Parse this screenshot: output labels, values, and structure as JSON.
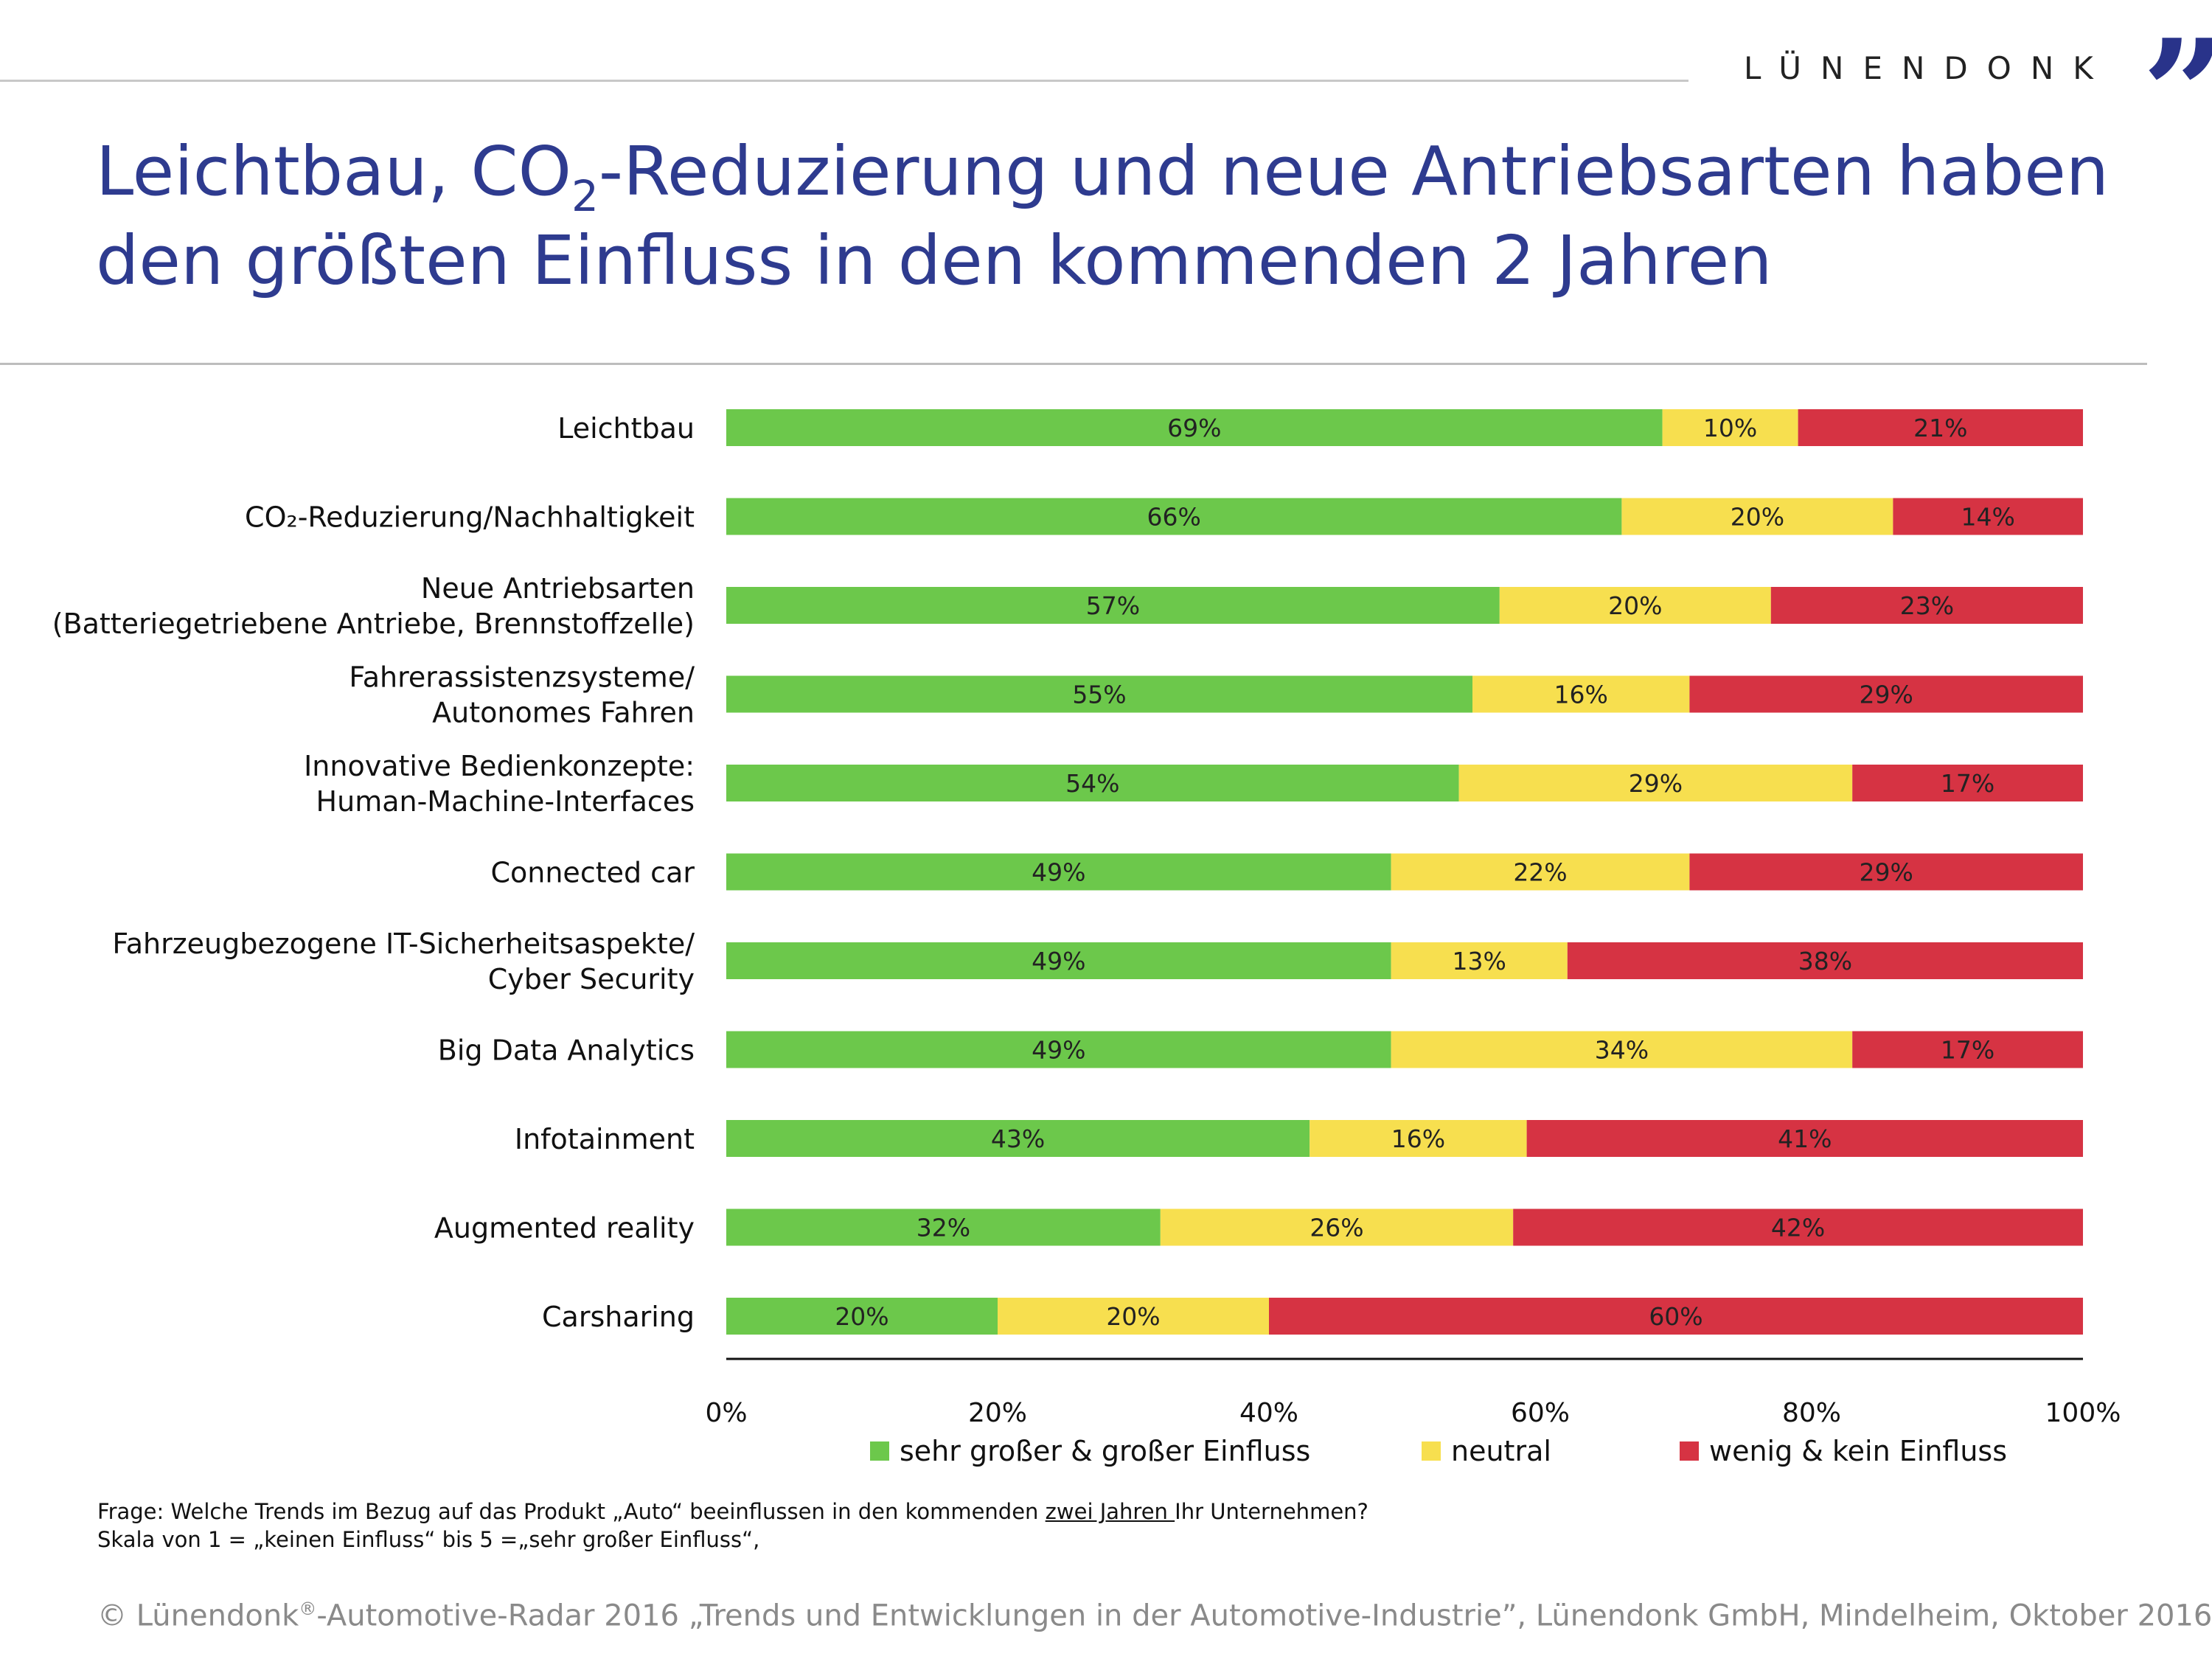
{
  "header": {
    "brand": "LÜNENDONK",
    "brand_quote": "”",
    "title_part1": "Leichtbau, CO",
    "title_sub": "2",
    "title_part2": "-Reduzierung und neue Antriebsarten haben",
    "title_line2": "den größten Einfluss in den kommenden 2 Jahren"
  },
  "colors": {
    "green": "#6cc84b",
    "yellow": "#f7df4f",
    "red": "#d63343",
    "title_blue": "#2e3b8f"
  },
  "chart_data": {
    "type": "bar",
    "orientation": "horizontal",
    "stacked": true,
    "categories": [
      [
        "Leichtbau"
      ],
      [
        "CO₂-Reduzierung/Nachhaltigkeit"
      ],
      [
        "Neue Antriebsarten",
        "(Batteriegetriebene Antriebe, Brennstoffzelle)"
      ],
      [
        "Fahrerassistenzsysteme/",
        "Autonomes Fahren"
      ],
      [
        "Innovative Bedienkonzepte:",
        "Human-Machine-Interfaces"
      ],
      [
        "Connected car"
      ],
      [
        "Fahrzeugbezogene IT-Sicherheitsaspekte/",
        "Cyber Security"
      ],
      [
        "Big Data Analytics"
      ],
      [
        "Infotainment"
      ],
      [
        "Augmented reality"
      ],
      [
        "Carsharing"
      ]
    ],
    "series": [
      {
        "name": "sehr großer & großer Einfluss",
        "color": "#6cc84b",
        "values": [
          69,
          66,
          57,
          55,
          54,
          49,
          49,
          49,
          43,
          32,
          20
        ]
      },
      {
        "name": "neutral",
        "color": "#f7df4f",
        "values": [
          10,
          20,
          20,
          16,
          29,
          22,
          13,
          34,
          16,
          26,
          20
        ]
      },
      {
        "name": "wenig & kein Einfluss",
        "color": "#d63343",
        "values": [
          21,
          14,
          23,
          29,
          17,
          29,
          38,
          17,
          41,
          42,
          60
        ]
      }
    ],
    "xlim": [
      0,
      100
    ],
    "xticks": [
      "0%",
      "20%",
      "40%",
      "60%",
      "80%",
      "100%"
    ],
    "value_suffix": "%",
    "legend_position": "bottom"
  },
  "notes": {
    "frage_a": "Frage: Welche Trends im Bezug auf das Produkt „Auto“ beeinflussen in den kommenden ",
    "frage_ul": "zwei Jahren ",
    "frage_b": "Ihr Unternehmen?",
    "skala": "Skala von 1 = „keinen Einfluss“ bis  5 =„sehr großer Einfluss“,"
  },
  "footer": {
    "a": "© Lünendonk",
    "reg": "®",
    "b": "-Automotive-Radar 2016 „Trends und Entwicklungen in der Automotive-Industrie”, Lünendonk GmbH, Mindelheim, Oktober 2016"
  }
}
